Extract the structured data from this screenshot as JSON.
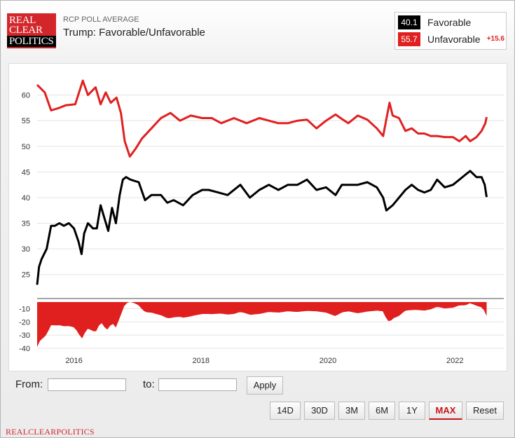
{
  "header": {
    "logo_lines": [
      "REAL",
      "CLEAR",
      "POLITICS"
    ],
    "subtitle": "RCP POLL AVERAGE",
    "title": "Trump: Favorable/Unfavorable"
  },
  "legend": {
    "favorable": {
      "value": "40.1",
      "label": "Favorable",
      "color": "#000000"
    },
    "unfavorable": {
      "value": "55.7",
      "label": "Unfavorable",
      "color": "#e0201f",
      "spread": "+15.6"
    }
  },
  "controls": {
    "from_label": "From:",
    "to_label": "to:",
    "from_value": "",
    "to_value": "",
    "apply_label": "Apply",
    "ranges": [
      {
        "label": "14D",
        "active": false
      },
      {
        "label": "30D",
        "active": false
      },
      {
        "label": "3M",
        "active": false
      },
      {
        "label": "6M",
        "active": false
      },
      {
        "label": "1Y",
        "active": false
      },
      {
        "label": "MAX",
        "active": true
      },
      {
        "label": "Reset",
        "active": false
      }
    ]
  },
  "footer": {
    "text": "REALCLEARPOLITICS"
  },
  "chart_data": {
    "type": "line",
    "x_ticks": [
      "2016",
      "2018",
      "2020",
      "2022"
    ],
    "y_ticks": [
      25,
      30,
      35,
      40,
      45,
      50,
      55,
      60
    ],
    "ylim": [
      21,
      65
    ],
    "spread_ticks": [
      -10,
      -20,
      -30,
      -40
    ],
    "spread_ylim": [
      -40,
      -5
    ],
    "xlim": [
      2015.5,
      2022.85
    ],
    "grid": true,
    "series": [
      {
        "name": "Unfavorable",
        "color": "#e0201f",
        "x": [
          2015.5,
          2015.62,
          2015.72,
          2015.85,
          2015.95,
          2016.1,
          2016.22,
          2016.3,
          2016.42,
          2016.5,
          2016.58,
          2016.66,
          2016.75,
          2016.82,
          2016.88,
          2016.96,
          2017.05,
          2017.15,
          2017.3,
          2017.45,
          2017.6,
          2017.75,
          2017.92,
          2018.1,
          2018.25,
          2018.4,
          2018.6,
          2018.8,
          2019.0,
          2019.15,
          2019.3,
          2019.45,
          2019.6,
          2019.75,
          2019.9,
          2020.05,
          2020.2,
          2020.28,
          2020.4,
          2020.55,
          2020.7,
          2020.85,
          2020.95,
          2021.05,
          2021.1,
          2021.2,
          2021.3,
          2021.4,
          2021.5,
          2021.6,
          2021.7,
          2021.8,
          2021.92,
          2022.05,
          2022.15,
          2022.25,
          2022.32,
          2022.42,
          2022.5,
          2022.56,
          2022.58
        ],
        "values": [
          62,
          60.5,
          57,
          57.5,
          58,
          58.2,
          62.8,
          60,
          61.5,
          58.2,
          60.5,
          58.5,
          59.5,
          56.5,
          51,
          48,
          49.5,
          51.5,
          53.5,
          55.5,
          56.5,
          55,
          56,
          55.5,
          55.5,
          54.5,
          55.5,
          54.5,
          55.5,
          55,
          54.5,
          54.5,
          55,
          55.2,
          53.5,
          55,
          56.2,
          55.5,
          54.5,
          56,
          55.2,
          53.5,
          52,
          58.5,
          56,
          55.5,
          53,
          53.5,
          52.5,
          52.5,
          52,
          52,
          51.8,
          51.8,
          51,
          52,
          51,
          51.8,
          53,
          54.5,
          55.7
        ]
      },
      {
        "name": "Favorable",
        "color": "#000000",
        "x": [
          2015.5,
          2015.53,
          2015.57,
          2015.65,
          2015.72,
          2015.78,
          2015.85,
          2015.92,
          2016.0,
          2016.08,
          2016.15,
          2016.2,
          2016.24,
          2016.3,
          2016.38,
          2016.44,
          2016.5,
          2016.56,
          2016.62,
          2016.68,
          2016.74,
          2016.8,
          2016.85,
          2016.9,
          2016.97,
          2017.1,
          2017.2,
          2017.3,
          2017.45,
          2017.55,
          2017.65,
          2017.8,
          2017.95,
          2018.1,
          2018.2,
          2018.35,
          2018.5,
          2018.7,
          2018.85,
          2019.0,
          2019.15,
          2019.3,
          2019.45,
          2019.6,
          2019.75,
          2019.9,
          2020.05,
          2020.2,
          2020.3,
          2020.45,
          2020.55,
          2020.7,
          2020.85,
          2020.95,
          2021.0,
          2021.1,
          2021.2,
          2021.3,
          2021.4,
          2021.5,
          2021.6,
          2021.7,
          2021.8,
          2021.92,
          2022.05,
          2022.15,
          2022.25,
          2022.32,
          2022.42,
          2022.5,
          2022.55,
          2022.58
        ],
        "values": [
          23,
          26.5,
          28,
          30,
          34.5,
          34.5,
          35,
          34.5,
          35,
          34,
          31.5,
          29,
          33,
          35,
          34,
          34,
          38.5,
          36,
          33.5,
          38,
          35,
          40.5,
          43.5,
          44,
          43.5,
          43,
          39.5,
          40.5,
          40.5,
          39,
          39.5,
          38.5,
          40.5,
          41.5,
          41.5,
          41,
          40.5,
          42.5,
          40,
          41.5,
          42.5,
          41.5,
          42.5,
          42.5,
          43.5,
          41.5,
          42,
          40.5,
          42.5,
          42.5,
          42.5,
          43,
          42,
          40,
          37.5,
          38.5,
          40,
          41.5,
          42.5,
          41.5,
          41,
          41.5,
          43.5,
          42,
          42.5,
          43.5,
          44.5,
          45.2,
          44,
          44,
          42.5,
          40.1
        ]
      }
    ]
  }
}
